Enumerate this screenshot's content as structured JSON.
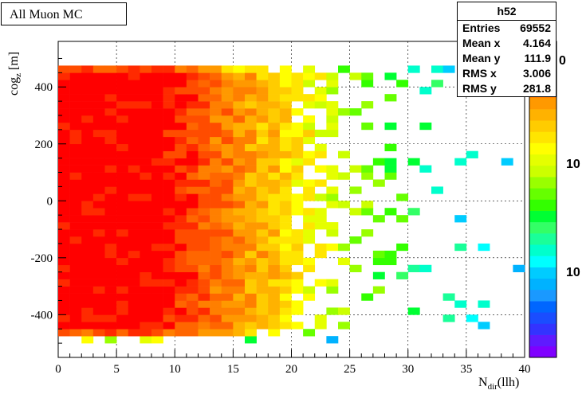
{
  "title": "All Muon MC",
  "stats": {
    "name": "h52",
    "rows": [
      {
        "label": "Entries",
        "value": "69552"
      },
      {
        "label": "Mean x",
        "value": "4.164"
      },
      {
        "label": "Mean y",
        "value": "111.9"
      },
      {
        "label": "RMS x",
        "value": "3.006"
      },
      {
        "label": "RMS y",
        "value": "281.8"
      }
    ]
  },
  "palette_labels": [
    "0",
    "10",
    "10"
  ],
  "chart_data": {
    "type": "heatmap",
    "xlabel_main": "N",
    "xlabel_sub": "dir",
    "xlabel_suffix": "(llh)",
    "ylabel_main": "cog",
    "ylabel_sub": "z",
    "ylabel_suffix": " [m]",
    "xlim": [
      0,
      40
    ],
    "ylim": [
      -550,
      560
    ],
    "xticks": [
      0,
      5,
      10,
      15,
      20,
      25,
      30,
      35,
      40
    ],
    "yticks": [
      -400,
      -200,
      0,
      200,
      400
    ],
    "grid": true,
    "colorbar": "log",
    "ybins_edges": [
      -500,
      475
    ]
  }
}
